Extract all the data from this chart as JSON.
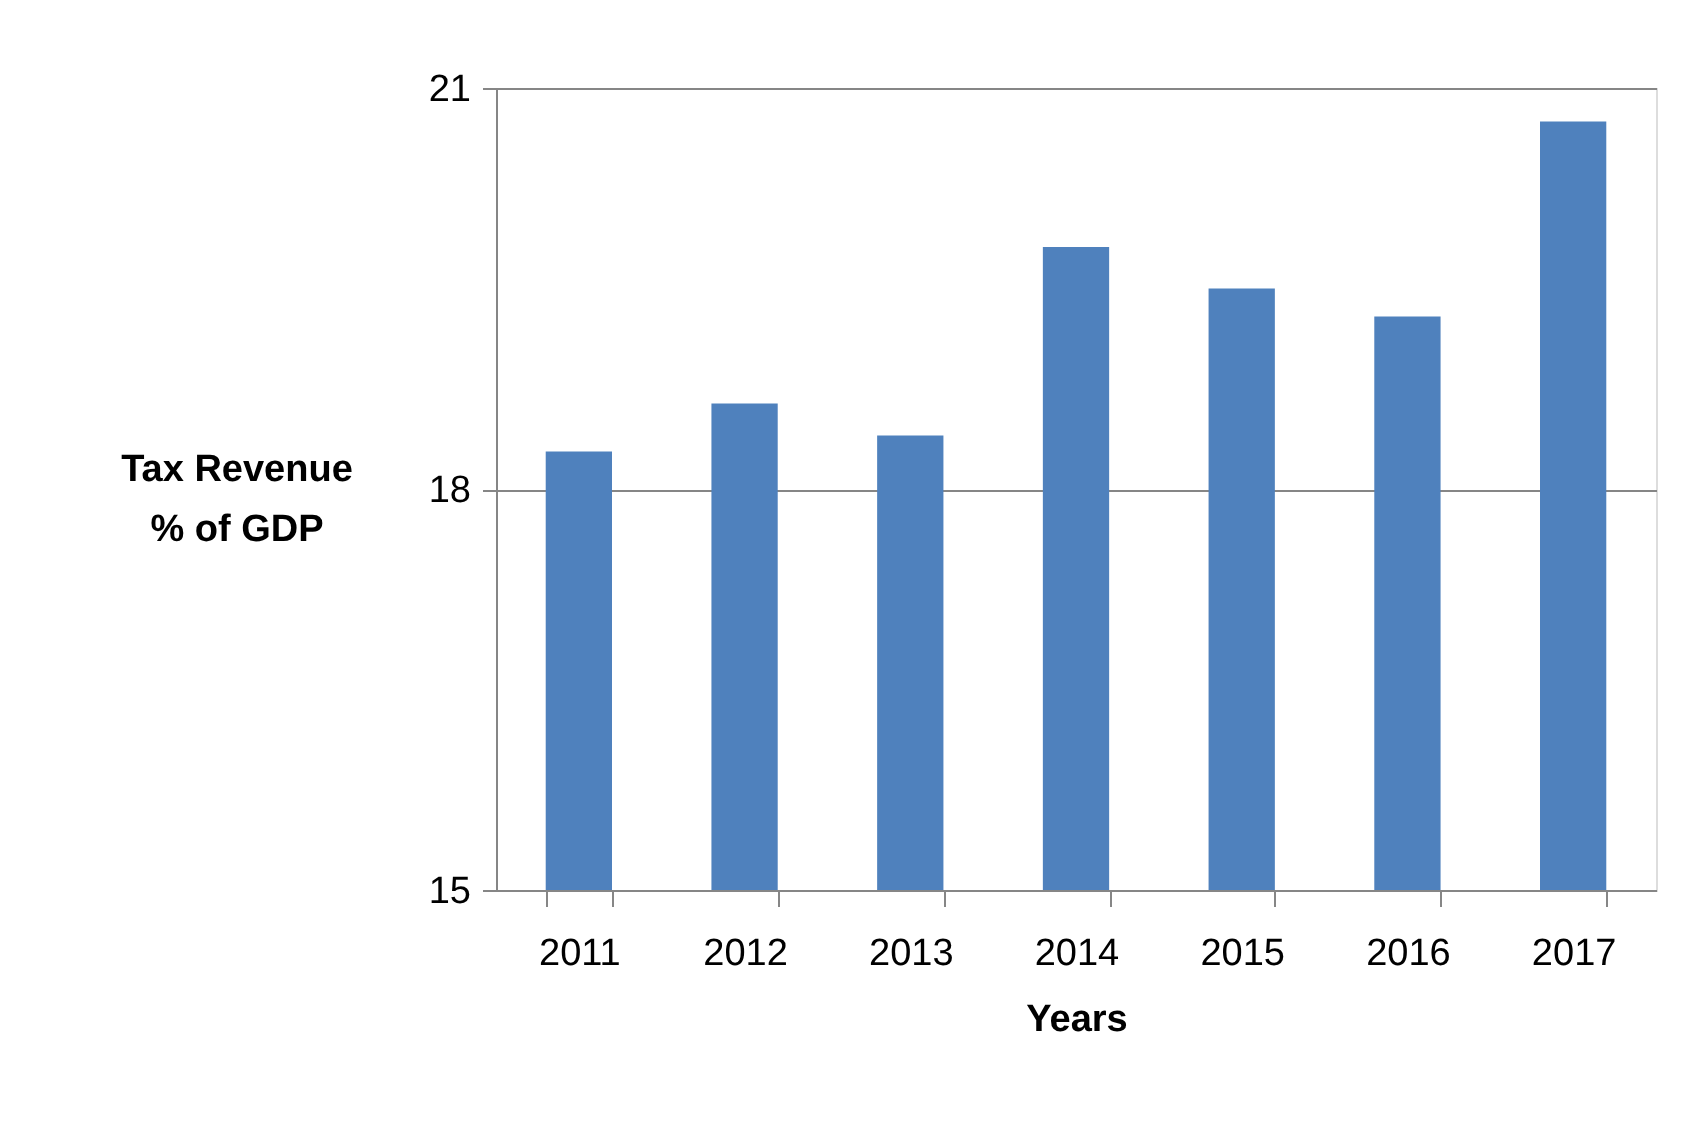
{
  "chart_data": {
    "type": "bar",
    "xlabel": "Years",
    "ylabel": "Tax Revenue\n% of GDP",
    "categories": [
      "2011",
      "2012",
      "2013",
      "2014",
      "2015",
      "2016",
      "2017"
    ],
    "series": [
      {
        "color": "#4f81bd",
        "values": [
          18.28,
          18.64,
          18.4,
          19.81,
          19.5,
          19.29,
          20.75
        ]
      }
    ],
    "ylim": [
      15,
      21
    ],
    "yticks": [
      15,
      18,
      21
    ],
    "grid": "y"
  }
}
